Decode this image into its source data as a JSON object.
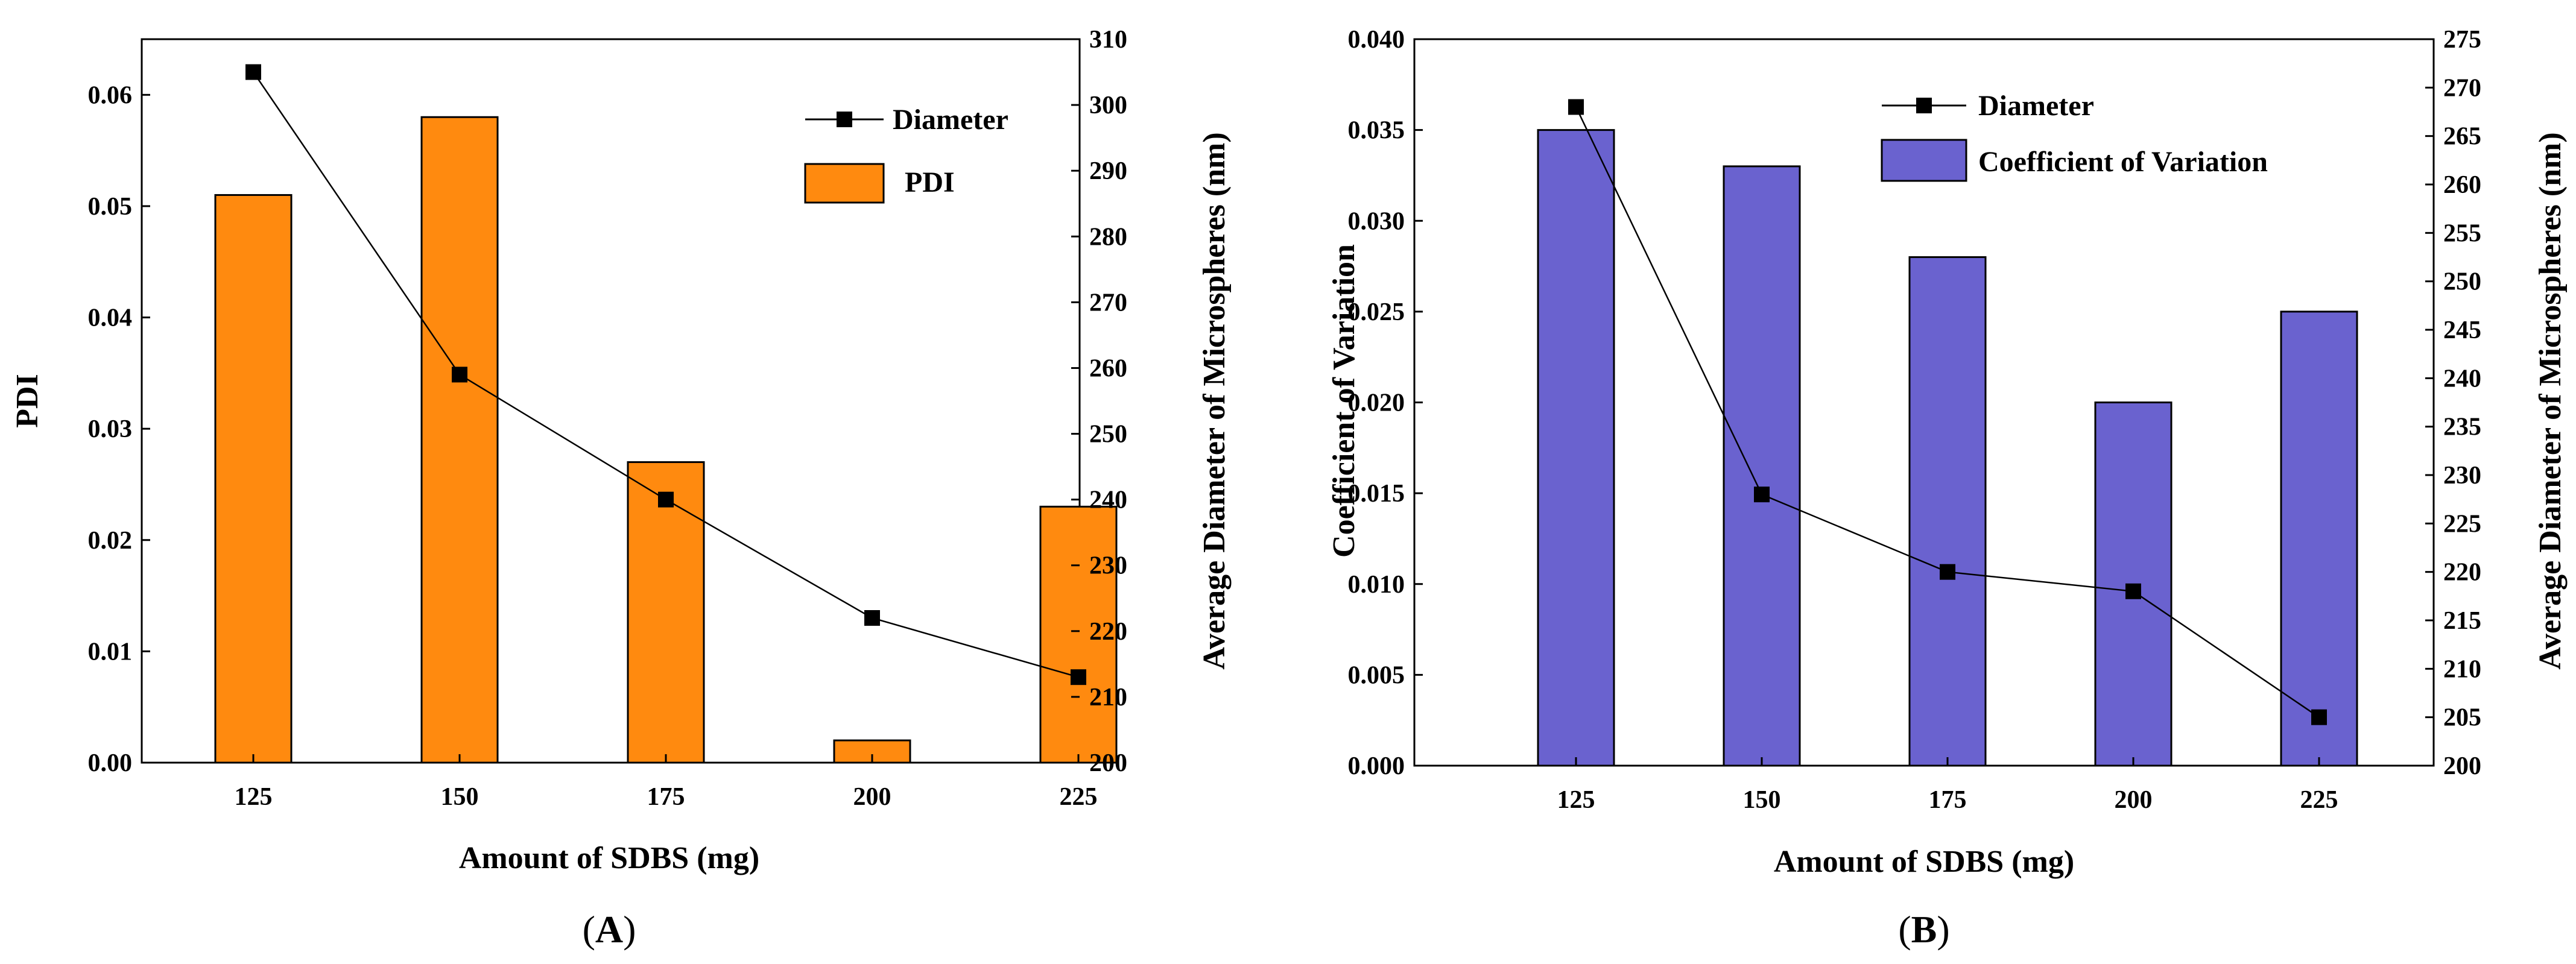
{
  "colors": {
    "panel_a_bar": "#FF8A0F",
    "panel_b_bar": "#6A62CF",
    "bar_stroke": "#000000",
    "line": "#000000",
    "marker": "#000000"
  },
  "chart_data": [
    {
      "type": "bar",
      "panel_label": "A",
      "categories": [
        "125",
        "150",
        "175",
        "200",
        "225"
      ],
      "series": [
        {
          "name": "PDI",
          "type": "bar",
          "axis": "left",
          "values": [
            0.051,
            0.058,
            0.027,
            0.002,
            0.023
          ]
        },
        {
          "name": "Diameter",
          "type": "line",
          "axis": "right",
          "marker": "square",
          "values": [
            305,
            259,
            240,
            222,
            213
          ]
        }
      ],
      "xlabel": "Amount of SDBS (mg)",
      "ylabel": "PDI",
      "y2label": "Average Diameter of Microspheres (nm)",
      "ylim": [
        0,
        0.065
      ],
      "yticks": [
        0.0,
        0.01,
        0.02,
        0.03,
        0.04,
        0.05,
        0.06
      ],
      "ytick_labels": [
        "0.00",
        "0.01",
        "0.02",
        "0.03",
        "0.04",
        "0.05",
        "0.06"
      ],
      "y2lim": [
        200,
        310
      ],
      "y2ticks": [
        200,
        210,
        220,
        230,
        240,
        250,
        260,
        270,
        280,
        290,
        300,
        310
      ],
      "y2tick_labels": [
        "200",
        "210",
        "220",
        "230",
        "240",
        "250",
        "260",
        "270",
        "280",
        "290",
        "300",
        "310"
      ],
      "legend": {
        "position": "top-right",
        "entries": [
          {
            "label": "Diameter",
            "kind": "line-marker"
          },
          {
            "label": "PDI",
            "kind": "bar"
          }
        ]
      },
      "grid": false
    },
    {
      "type": "bar",
      "panel_label": "B",
      "categories": [
        "125",
        "150",
        "175",
        "200",
        "225"
      ],
      "series": [
        {
          "name": "Coefficient of Variation",
          "type": "bar",
          "axis": "left",
          "values": [
            0.035,
            0.033,
            0.028,
            0.02,
            0.025
          ]
        },
        {
          "name": "Diameter",
          "type": "line",
          "axis": "right",
          "marker": "square",
          "values": [
            268,
            228,
            220,
            218,
            205
          ]
        }
      ],
      "xlabel": "Amount of SDBS (mg)",
      "ylabel": "Coefficient of Variation",
      "y2label": "Average Diameter of Microspheres (nm)",
      "ylim": [
        0,
        0.04
      ],
      "yticks": [
        0.0,
        0.005,
        0.01,
        0.015,
        0.02,
        0.025,
        0.03,
        0.035,
        0.04
      ],
      "ytick_labels": [
        "0.000",
        "0.005",
        "0.010",
        "0.015",
        "0.020",
        "0.025",
        "0.030",
        "0.035",
        "0.040"
      ],
      "y2lim": [
        200,
        275
      ],
      "y2ticks": [
        200,
        205,
        210,
        215,
        220,
        225,
        230,
        235,
        240,
        245,
        250,
        255,
        260,
        265,
        270,
        275
      ],
      "y2tick_labels": [
        "200",
        "205",
        "210",
        "215",
        "220",
        "225",
        "230",
        "235",
        "240",
        "245",
        "250",
        "255",
        "260",
        "265",
        "270",
        "275"
      ],
      "legend": {
        "position": "top-right",
        "entries": [
          {
            "label": "Diameter",
            "kind": "line-marker"
          },
          {
            "label": "Coefficient of Variation",
            "kind": "bar"
          }
        ]
      },
      "grid": false
    }
  ]
}
